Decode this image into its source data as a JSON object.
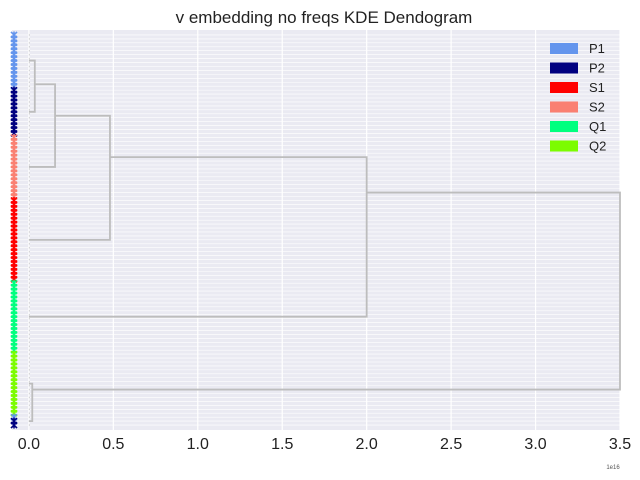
{
  "chart_data": {
    "type": "dendrogram",
    "title": "v embedding no freqs KDE Dendogram",
    "xlabel": "",
    "ylabel": "",
    "x_offset_label": "1e16",
    "xlim": [
      -0.1,
      3.5
    ],
    "xticks": [
      0.0,
      0.5,
      1.0,
      1.5,
      2.0,
      2.5,
      3.0,
      3.5
    ],
    "xtick_labels": [
      "0.0",
      "0.5",
      "1.0",
      "1.5",
      "2.0",
      "2.5",
      "3.0",
      "3.5"
    ],
    "orientation": "left",
    "grid": true,
    "legend_position": "top-right",
    "legend": [
      {
        "label": "P1",
        "color": "#6495ED"
      },
      {
        "label": "P2",
        "color": "#000080"
      },
      {
        "label": "S1",
        "color": "#FF0000"
      },
      {
        "label": "S2",
        "color": "#FA8072"
      },
      {
        "label": "Q1",
        "color": "#00FF7F"
      },
      {
        "label": "Q2",
        "color": "#7CFC00"
      }
    ],
    "link_color": "#BDBDBD",
    "leaf_count": 100,
    "leaf_groups": [
      {
        "label": "P1",
        "count": 14
      },
      {
        "label": "P2",
        "count": 12
      },
      {
        "label": "S2",
        "count": 16
      },
      {
        "label": "S1",
        "count": 21
      },
      {
        "label": "Q1",
        "count": 18
      },
      {
        "label": "Q2",
        "count": 16
      },
      {
        "label": "P1",
        "count": 1
      },
      {
        "label": "P2",
        "count": 2
      }
    ],
    "merges": [
      {
        "height": 3.5,
        "from_leaf": 0,
        "to_leaf": 81,
        "left_height": 2.0,
        "right_height": 0.02
      },
      {
        "height": 2.0,
        "from_leaf": 0,
        "to_leaf": 63,
        "left_height": 0.48,
        "right_height": 0.0
      },
      {
        "height": 0.48,
        "from_leaf": 0,
        "to_leaf": 42,
        "left_height": 0.155,
        "right_height": 0.0
      },
      {
        "height": 0.155,
        "from_leaf": 0,
        "to_leaf": 26,
        "left_height": 0.035,
        "right_height": 0.0
      },
      {
        "height": 0.035,
        "from_leaf": 0,
        "to_leaf": 14,
        "left_height": 0.0,
        "right_height": 0.0
      },
      {
        "height": 0.02,
        "from_leaf": 81,
        "to_leaf": 97,
        "left_height": 0.0,
        "right_height": 0.0
      }
    ]
  }
}
